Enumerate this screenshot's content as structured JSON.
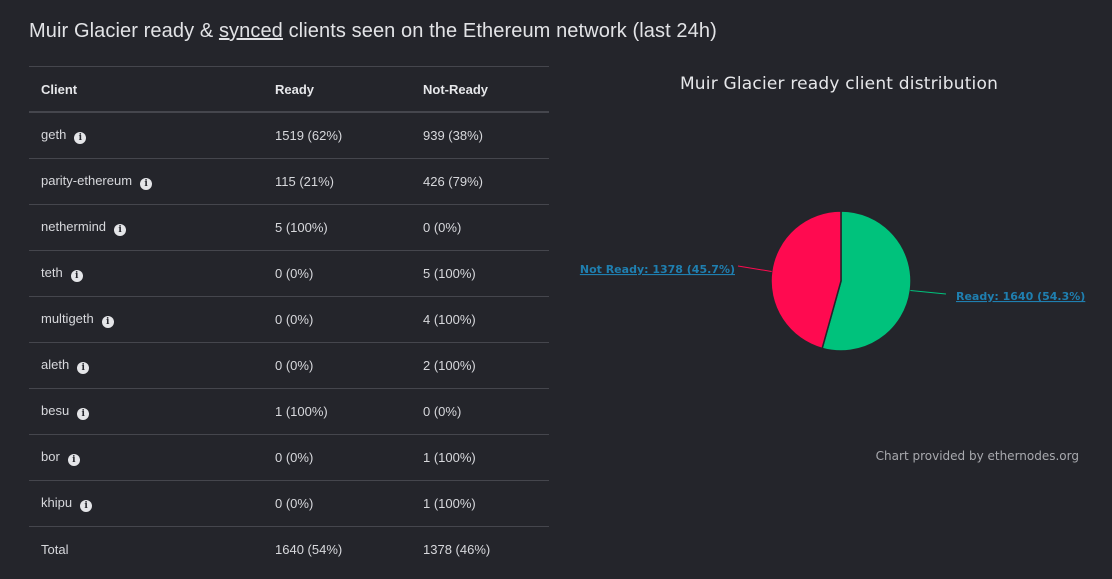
{
  "page": {
    "title_before": "Muir Glacier ready & ",
    "title_link": "synced",
    "title_after": " clients seen on the Ethereum network (last 24h)"
  },
  "table": {
    "headers": [
      "Client",
      "Ready",
      "Not-Ready"
    ],
    "rows": [
      {
        "client": "geth",
        "ready": "1519 (62%)",
        "not_ready": "939 (38%)"
      },
      {
        "client": "parity-ethereum",
        "ready": "115 (21%)",
        "not_ready": "426 (79%)"
      },
      {
        "client": "nethermind",
        "ready": "5 (100%)",
        "not_ready": "0 (0%)"
      },
      {
        "client": "teth",
        "ready": "0 (0%)",
        "not_ready": "5 (100%)"
      },
      {
        "client": "multigeth",
        "ready": "0 (0%)",
        "not_ready": "4 (100%)"
      },
      {
        "client": "aleth",
        "ready": "0 (0%)",
        "not_ready": "2 (100%)"
      },
      {
        "client": "besu",
        "ready": "1 (100%)",
        "not_ready": "0 (0%)"
      },
      {
        "client": "bor",
        "ready": "0 (0%)",
        "not_ready": "1 (100%)"
      },
      {
        "client": "khipu",
        "ready": "0 (0%)",
        "not_ready": "1 (100%)"
      }
    ],
    "total": {
      "client": "Total",
      "ready": "1640 (54%)",
      "not_ready": "1378 (46%)"
    },
    "info_icon": "info-icon"
  },
  "chart_data": {
    "type": "pie",
    "title": "Muir Glacier ready client distribution",
    "slices": [
      {
        "name": "Ready",
        "value": 1640,
        "label": "Ready: 1640 (54.3%)",
        "color": "#00c27c"
      },
      {
        "name": "Not Ready",
        "value": 1378,
        "label": "Not Ready: 1378 (45.7%)",
        "color": "#ff0a50"
      }
    ],
    "label_color": "#1f7fb0",
    "credit": "Chart provided by ethernodes.org"
  }
}
